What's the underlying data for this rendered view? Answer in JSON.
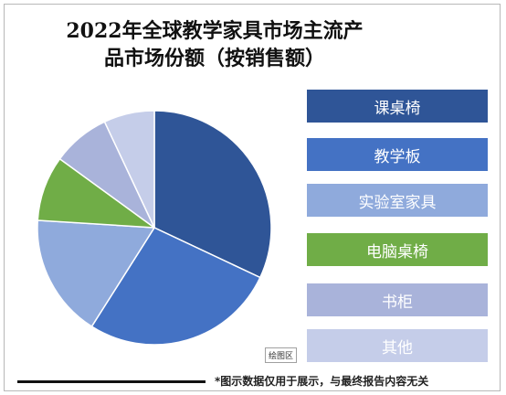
{
  "chart_data": {
    "type": "pie",
    "title_lines": [
      "2022年全球教学家具市场主流产",
      "品市场份额（按销售额）"
    ],
    "categories": [
      "课桌椅",
      "教学板",
      "实验室家具",
      "电脑桌椅",
      "书柜",
      "其他"
    ],
    "values": [
      32,
      27,
      17,
      9,
      8,
      7
    ],
    "colors": [
      "#2f5597",
      "#4472c4",
      "#8faadc",
      "#70ad47",
      "#a9b3da",
      "#c5cde9"
    ],
    "legend_placement": "right",
    "start_angle_deg": 0,
    "direction": "clockwise"
  },
  "plot_area_label": "绘图区",
  "footnote": "*图示数据仅用于展示，与最终报告内容无关"
}
